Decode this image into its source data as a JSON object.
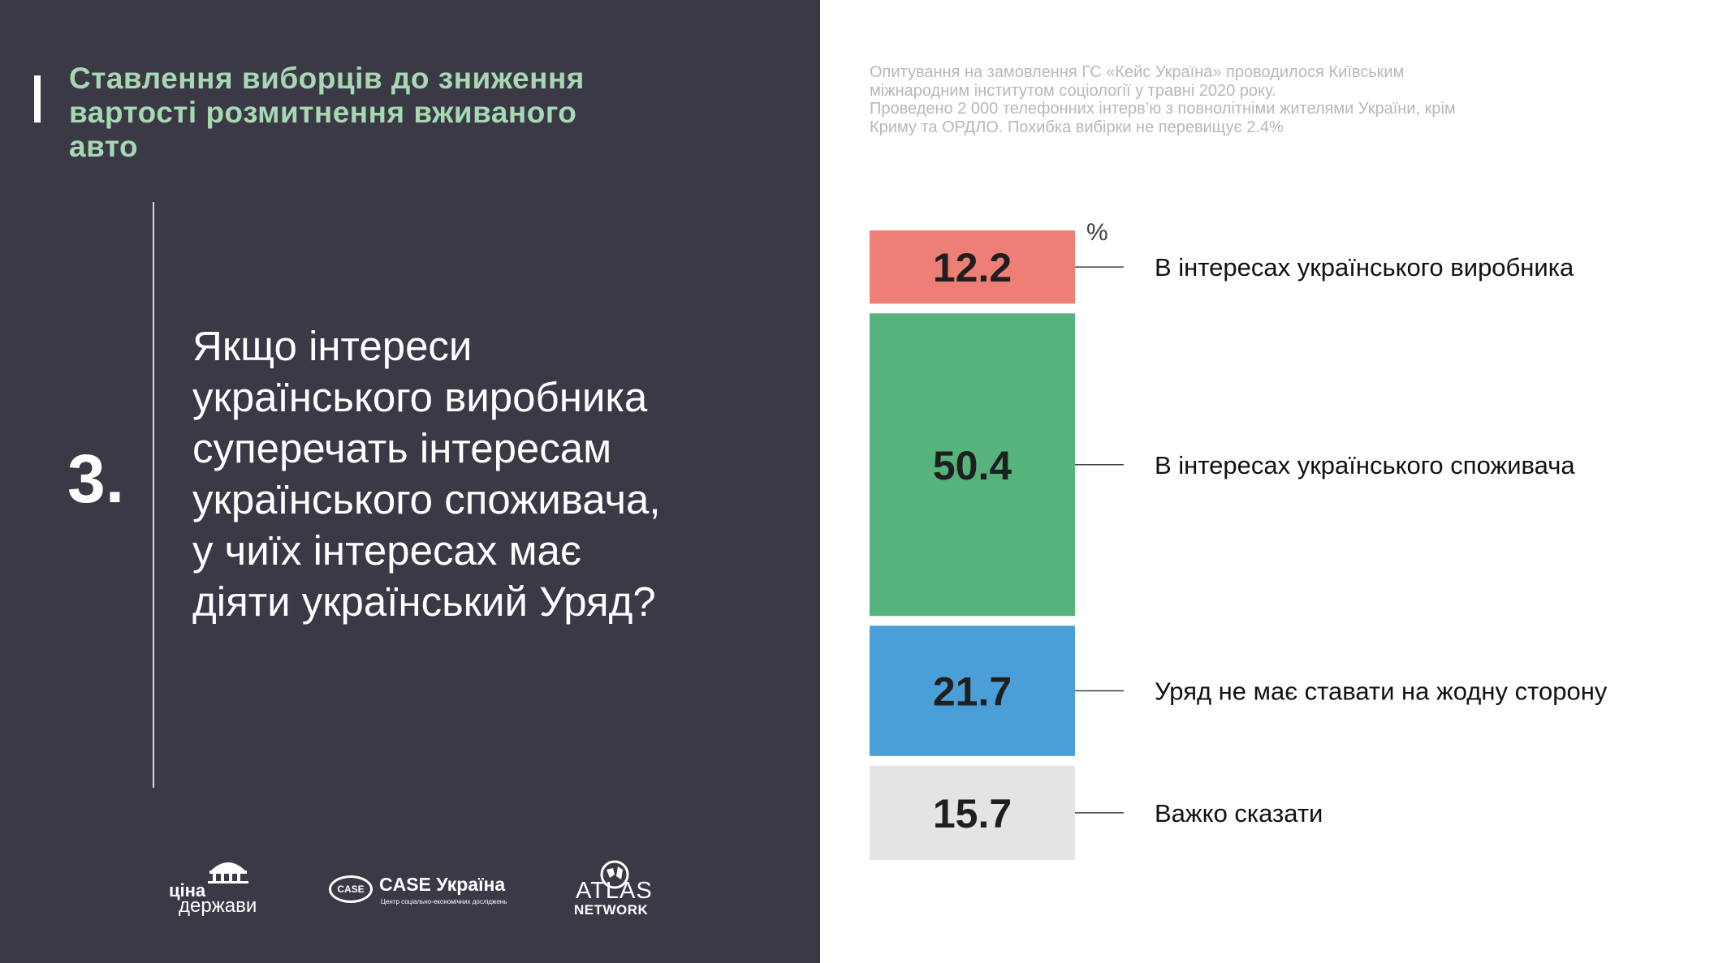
{
  "header": {
    "title": "Ставлення виборців до зниження\nвартості розмитнення вживаного\nавто"
  },
  "question": {
    "number": "3.",
    "text": "Якщо інтереси\nукраїнського виробника\nсуперечать інтересам\nукраїнського споживача,\nу чиїх інтересах має\nдіяти  український Уряд?"
  },
  "note": "Опитування на замовлення ГС «Кейс Україна» проводилося Київським\nміжнародним інститутом соціології у травні 2020 року.\nПроведено 2 000 телефонних інтерв’ю з повнолітніми жителями України, крім\nКриму та ОРДЛО. Похибка вибірки не перевищує 2.4%",
  "logos": {
    "tsina_top": "ціна",
    "tsina_bottom": "держави",
    "case_badge": "CASE",
    "case_name": "CASE Україна",
    "case_sub": "Центр соціально-економічних досліджень",
    "atlas_top": "ATLAS",
    "atlas_bottom": "NETWORK"
  },
  "colors": {
    "left_panel_bg": "#3b3945",
    "title_color": "#a6d8b4"
  },
  "chart_data": {
    "type": "bar",
    "orientation": "stacked-vertical",
    "unit": "%",
    "categories": [
      "В інтересах українського виробника",
      "В інтересах українського споживача",
      "Уряд не має ставати на жодну сторону",
      "Важко сказати"
    ],
    "values": [
      12.2,
      50.4,
      21.7,
      15.7
    ],
    "value_labels": [
      "12.2",
      "50.4",
      "21.7",
      "15.7"
    ],
    "colors": [
      "#ee7f76",
      "#55b37b",
      "#4a9fd8",
      "#e4e4e4"
    ]
  }
}
